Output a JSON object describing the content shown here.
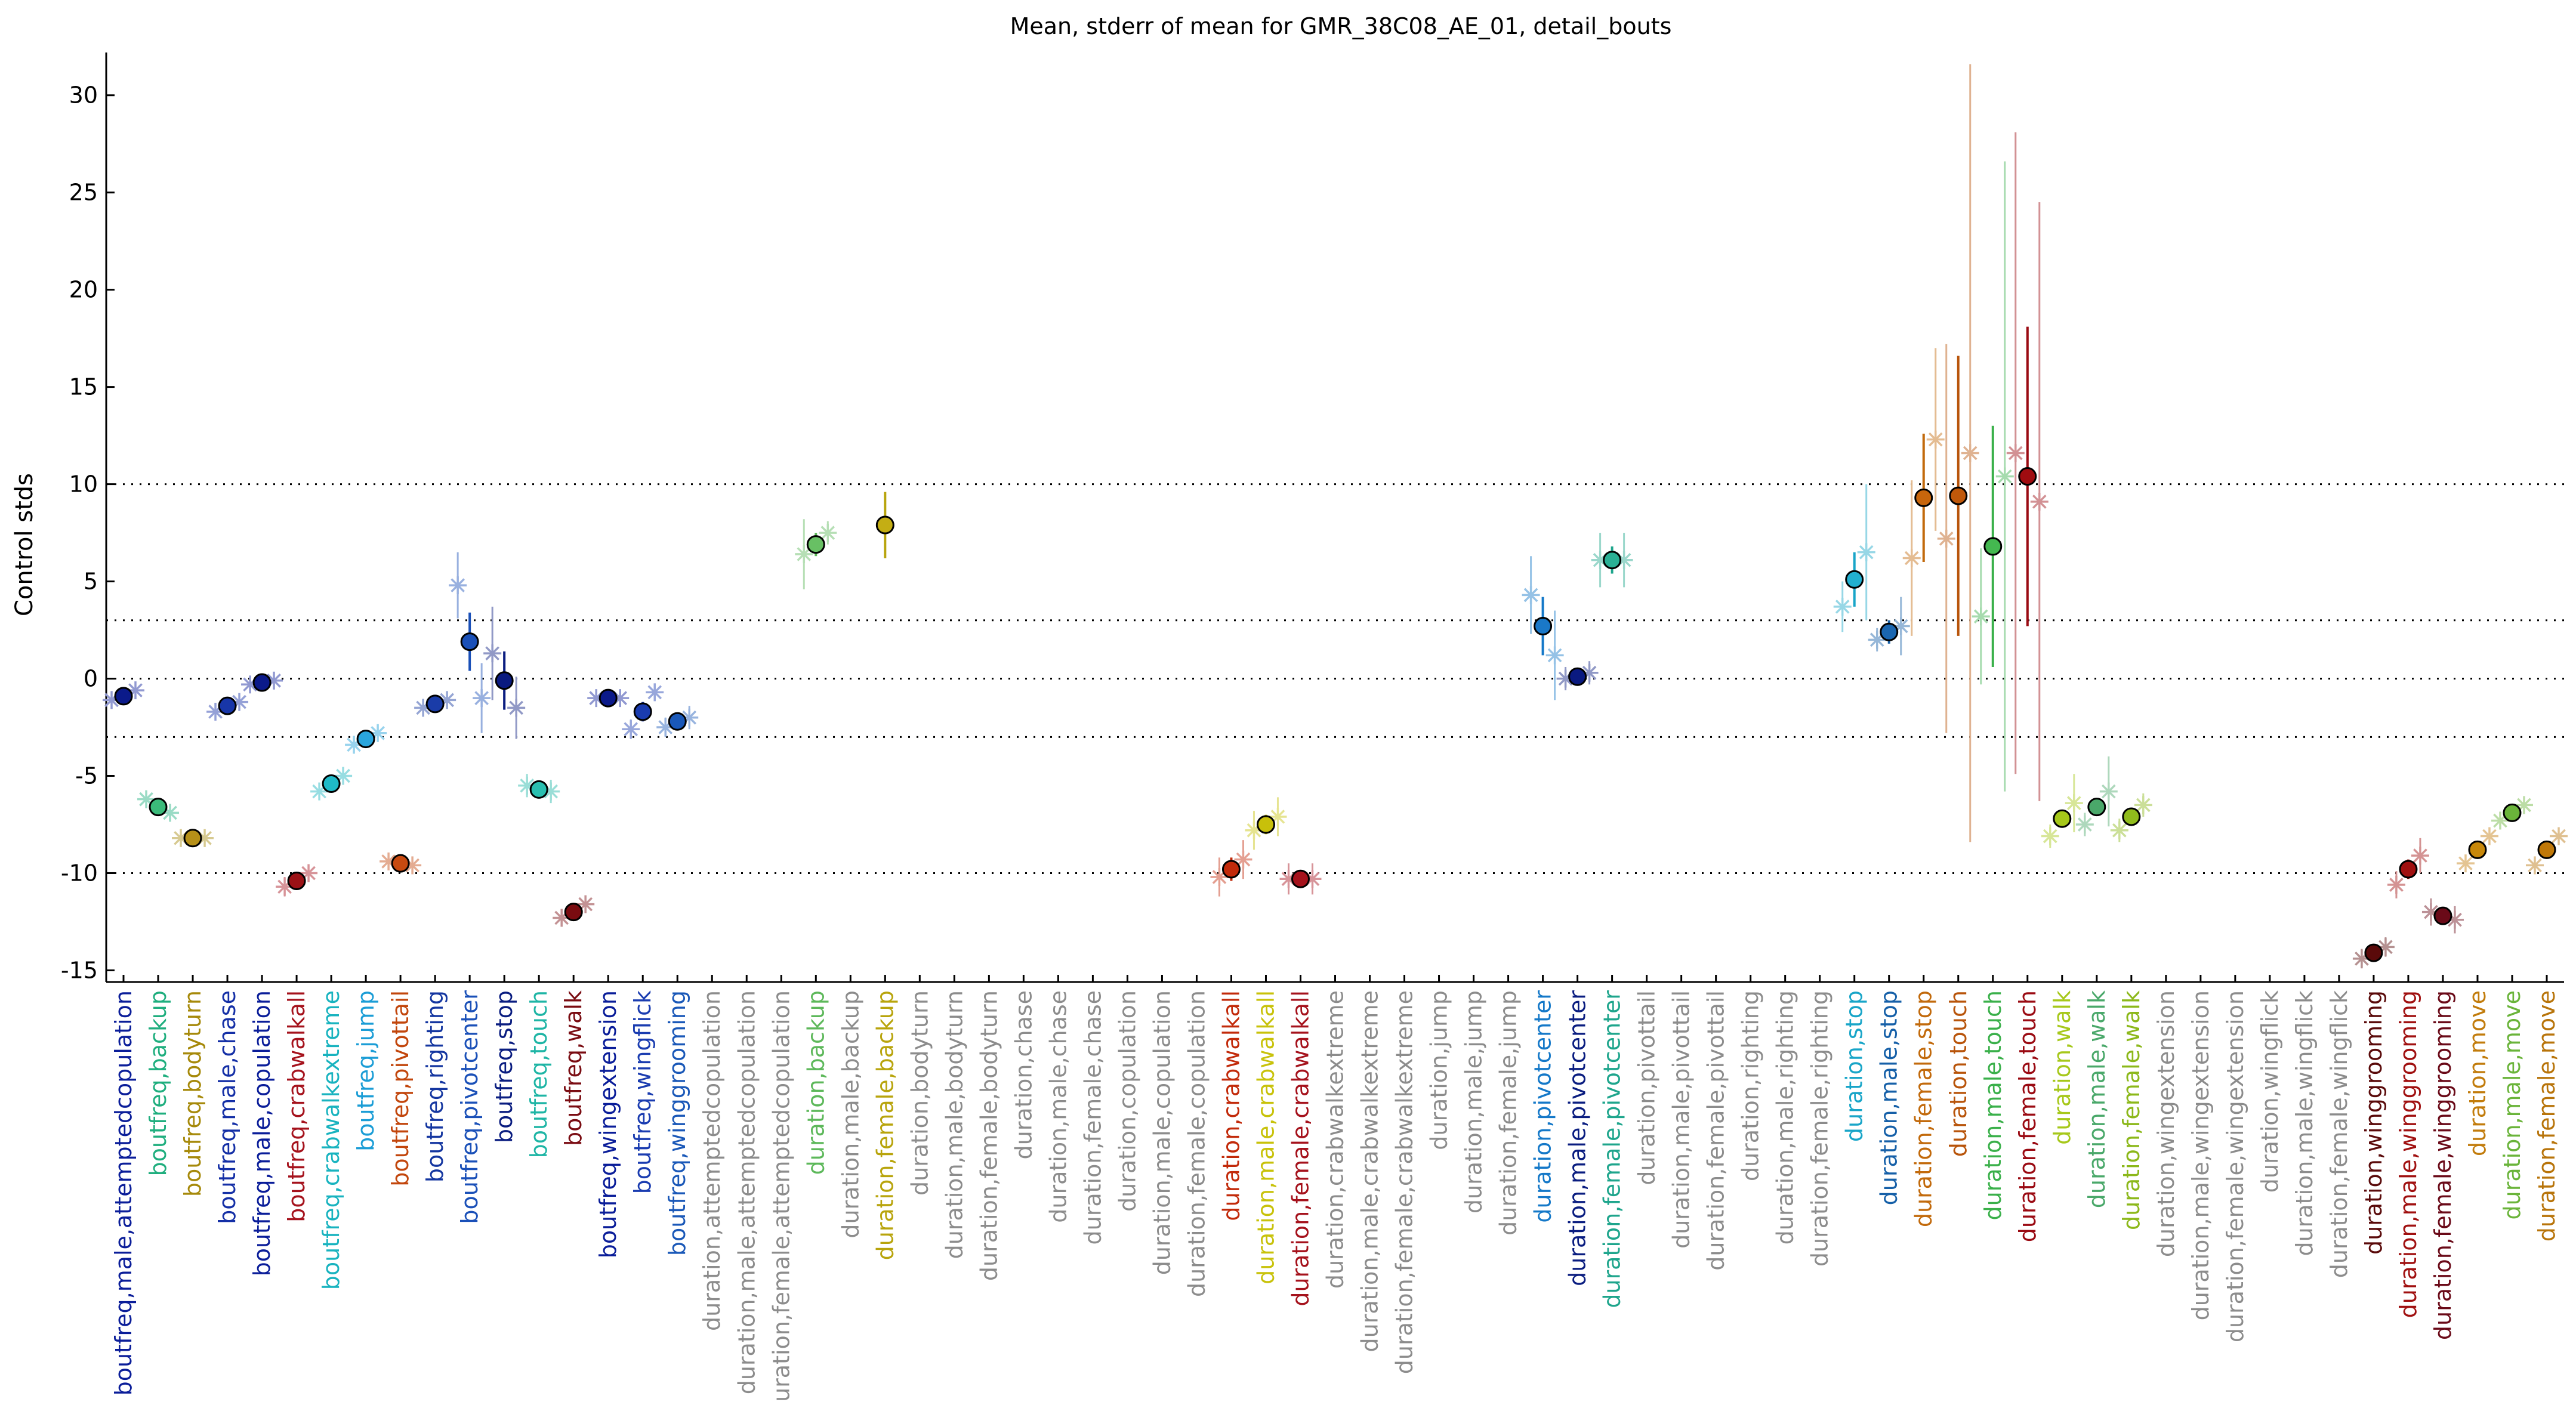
{
  "chart_data": {
    "type": "scatter",
    "title": "Mean, stderr of mean for GMR_38C08_AE_01, detail_bouts",
    "ylabel": "Control stds",
    "xlabel": "",
    "ylim": [
      -15.6,
      32.2
    ],
    "yticks": [
      -15,
      -10,
      -5,
      0,
      5,
      10,
      15,
      20,
      25,
      30
    ],
    "reference_lines": [
      10,
      3,
      0,
      -3,
      -10
    ],
    "grid": false,
    "categories": [
      {
        "label": "boutfreq,male,attemptedcopulation",
        "color": "#0a1d99",
        "mean": -0.9,
        "se": 0.3,
        "fill": "#0b1a8a",
        "sub": [
          -1.1,
          -0.6
        ],
        "subse": [
          0.3,
          0.3
        ]
      },
      {
        "label": "boutfreq,backup",
        "color": "#1fae7e",
        "mean": -6.6,
        "se": 0.3,
        "fill": "#3bba7a",
        "sub": [
          -6.2,
          -6.9
        ],
        "subse": [
          0.3,
          0.3
        ]
      },
      {
        "label": "boutfreq,bodyturn",
        "color": "#a6890a",
        "mean": -8.2,
        "se": 0.2,
        "fill": "#b69018",
        "sub": [
          -8.2,
          -8.2
        ],
        "subse": [
          0.2,
          0.2
        ]
      },
      {
        "label": "boutfreq,male,chase",
        "color": "#142fa6",
        "mean": -1.4,
        "se": 0.3,
        "fill": "#1836a8",
        "sub": [
          -1.7,
          -1.2
        ],
        "subse": [
          0.3,
          0.3
        ]
      },
      {
        "label": "boutfreq,male,copulation",
        "color": "#0a1d99",
        "mean": -0.2,
        "se": 0.2,
        "fill": "#0b1a8a",
        "sub": [
          -0.3,
          -0.1
        ],
        "subse": [
          0.2,
          0.2
        ]
      },
      {
        "label": "boutfreq,crabwalkall",
        "color": "#a5121c",
        "mean": -10.4,
        "se": 0.4,
        "fill": "#9c1216",
        "sub": [
          -10.7,
          -10.0
        ],
        "subse": [
          0.5,
          0.4
        ]
      },
      {
        "label": "boutfreq,crabwalkextreme",
        "color": "#18b3bf",
        "mean": -5.4,
        "se": 0.3,
        "fill": "#1fbac8",
        "sub": [
          -5.8,
          -5.0
        ],
        "subse": [
          0.3,
          0.3
        ]
      },
      {
        "label": "boutfreq,jump",
        "color": "#1b9dd6",
        "mean": -3.1,
        "se": 0.3,
        "fill": "#2aa5dc",
        "sub": [
          -3.4,
          -2.8
        ],
        "subse": [
          0.3,
          0.3
        ]
      },
      {
        "label": "boutfreq,pivottail",
        "color": "#c2460c",
        "mean": -9.5,
        "se": 0.2,
        "fill": "#c84a10",
        "sub": [
          -9.4,
          -9.6
        ],
        "subse": [
          0.2,
          0.2
        ]
      },
      {
        "label": "boutfreq,righting",
        "color": "#1436a0",
        "mean": -1.3,
        "se": 0.2,
        "fill": "#1a3ca8",
        "sub": [
          -1.5,
          -1.1
        ],
        "subse": [
          0.2,
          0.2
        ]
      },
      {
        "label": "boutfreq,pivotcenter",
        "color": "#1a50b8",
        "mean": 1.9,
        "se": 1.5,
        "fill": "#1a50b8",
        "sub": [
          4.8,
          -1.0
        ],
        "subse": [
          1.7,
          1.8
        ]
      },
      {
        "label": "boutfreq,stop",
        "color": "#0a1d80",
        "mean": -0.1,
        "se": 1.5,
        "fill": "#0a1a80",
        "sub": [
          1.3,
          -1.5
        ],
        "subse": [
          2.4,
          1.6
        ]
      },
      {
        "label": "boutfreq,touch",
        "color": "#1eb5a5",
        "mean": -5.7,
        "se": 0.4,
        "fill": "#2abfb0",
        "sub": [
          -5.5,
          -5.8
        ],
        "subse": [
          0.6,
          0.6
        ]
      },
      {
        "label": "boutfreq,walk",
        "color": "#7a0c12",
        "mean": -12.0,
        "se": 0.2,
        "fill": "#7a0c10",
        "sub": [
          -12.3,
          -11.6
        ],
        "subse": [
          0.3,
          0.3
        ]
      },
      {
        "label": "boutfreq,wingextension",
        "color": "#0a1d99",
        "mean": -1.0,
        "se": 0.2,
        "fill": "#0b1a8a",
        "sub": [
          -1.0,
          -1.0
        ],
        "subse": [
          0.2,
          0.2
        ]
      },
      {
        "label": "boutfreq,wingflick",
        "color": "#1a3cb0",
        "mean": -1.7,
        "se": 0.5,
        "fill": "#1a3cb0",
        "sub": [
          -2.6,
          -0.7
        ],
        "subse": [
          0.5,
          0.4
        ]
      },
      {
        "label": "boutfreq,winggrooming",
        "color": "#1a58b8",
        "mean": -2.2,
        "se": 0.3,
        "fill": "#1a58b8",
        "sub": [
          -2.5,
          -2.0
        ],
        "subse": [
          0.5,
          0.6
        ]
      },
      {
        "label": "duration,attemptedcopulation",
        "color": "#8c8c8c"
      },
      {
        "label": "duration,male,attemptedcopulation",
        "color": "#8c8c8c"
      },
      {
        "label": "duration,female,attemptedcopulation",
        "color": "#8c8c8c"
      },
      {
        "label": "duration,backup",
        "color": "#5db85a",
        "mean": 6.9,
        "se": 0.6,
        "fill": "#68c064",
        "sub": [
          6.4,
          7.5
        ],
        "subse": [
          1.8,
          0.6
        ]
      },
      {
        "label": "duration,male,backup",
        "color": "#8c8c8c"
      },
      {
        "label": "duration,female,backup",
        "color": "#b8a40c",
        "mean": 7.9,
        "se": 1.7,
        "fill": "#c4ae14"
      },
      {
        "label": "duration,bodyturn",
        "color": "#8c8c8c"
      },
      {
        "label": "duration,male,bodyturn",
        "color": "#8c8c8c"
      },
      {
        "label": "duration,female,bodyturn",
        "color": "#8c8c8c"
      },
      {
        "label": "duration,chase",
        "color": "#8c8c8c"
      },
      {
        "label": "duration,male,chase",
        "color": "#8c8c8c"
      },
      {
        "label": "duration,female,chase",
        "color": "#8c8c8c"
      },
      {
        "label": "duration,copulation",
        "color": "#8c8c8c"
      },
      {
        "label": "duration,male,copulation",
        "color": "#8c8c8c"
      },
      {
        "label": "duration,female,copulation",
        "color": "#8c8c8c"
      },
      {
        "label": "duration,crabwalkall",
        "color": "#c22a0a",
        "mean": -9.8,
        "se": 0.6,
        "fill": "#c22a0a",
        "sub": [
          -10.2,
          -9.3
        ],
        "subse": [
          1.0,
          1.0
        ]
      },
      {
        "label": "duration,male,crabwalkall",
        "color": "#c8c20a",
        "mean": -7.5,
        "se": 0.5,
        "fill": "#c8c00a",
        "sub": [
          -7.8,
          -7.1
        ],
        "subse": [
          1.0,
          1.0
        ]
      },
      {
        "label": "duration,female,crabwalkall",
        "color": "#a5121c",
        "mean": -10.3,
        "se": 0.4,
        "fill": "#a5121c",
        "sub": [
          -10.3,
          -10.3
        ],
        "subse": [
          0.8,
          0.8
        ]
      },
      {
        "label": "duration,crabwalkextreme",
        "color": "#8c8c8c"
      },
      {
        "label": "duration,male,crabwalkextreme",
        "color": "#8c8c8c"
      },
      {
        "label": "duration,female,crabwalkextreme",
        "color": "#8c8c8c"
      },
      {
        "label": "duration,jump",
        "color": "#8c8c8c"
      },
      {
        "label": "duration,male,jump",
        "color": "#8c8c8c"
      },
      {
        "label": "duration,female,jump",
        "color": "#8c8c8c"
      },
      {
        "label": "duration,pivotcenter",
        "color": "#1478c8",
        "mean": 2.7,
        "se": 1.5,
        "fill": "#1a78c8",
        "sub": [
          4.3,
          1.2
        ],
        "subse": [
          2.0,
          2.3
        ]
      },
      {
        "label": "duration,male,pivotcenter",
        "color": "#0a1d80",
        "mean": 0.1,
        "se": 0.3,
        "fill": "#0a1a80",
        "sub": [
          0.0,
          0.3
        ],
        "subse": [
          0.6,
          0.6
        ]
      },
      {
        "label": "duration,female,pivotcenter",
        "color": "#1ea58c",
        "mean": 6.1,
        "se": 0.7,
        "fill": "#2ab095",
        "sub": [
          6.1,
          6.1
        ],
        "subse": [
          1.4,
          1.4
        ]
      },
      {
        "label": "duration,pivottail",
        "color": "#8c8c8c"
      },
      {
        "label": "duration,male,pivottail",
        "color": "#8c8c8c"
      },
      {
        "label": "duration,female,pivottail",
        "color": "#8c8c8c"
      },
      {
        "label": "duration,righting",
        "color": "#8c8c8c"
      },
      {
        "label": "duration,male,righting",
        "color": "#8c8c8c"
      },
      {
        "label": "duration,female,righting",
        "color": "#8c8c8c"
      },
      {
        "label": "duration,stop",
        "color": "#18a5c8",
        "mean": 5.1,
        "se": 1.4,
        "fill": "#22b0d0",
        "sub": [
          3.7,
          6.5
        ],
        "subse": [
          1.3,
          3.5
        ]
      },
      {
        "label": "duration,male,stop",
        "color": "#1660a8",
        "mean": 2.4,
        "se": 0.6,
        "fill": "#1a66b0",
        "sub": [
          2.0,
          2.7
        ],
        "subse": [
          0.6,
          1.5
        ]
      },
      {
        "label": "duration,female,stop",
        "color": "#c26a0c",
        "mean": 9.3,
        "se": 3.3,
        "fill": "#c8660c",
        "sub": [
          6.2,
          12.3
        ],
        "subse": [
          4.0,
          4.7
        ]
      },
      {
        "label": "duration,touch",
        "color": "#b8540a",
        "mean": 9.4,
        "se": 7.2,
        "fill": "#c0580a",
        "sub": [
          7.2,
          11.6
        ],
        "subse": [
          10.0,
          20.0
        ]
      },
      {
        "label": "duration,male,touch",
        "color": "#3ab04a",
        "mean": 6.8,
        "se": 6.2,
        "fill": "#44b850",
        "sub": [
          3.2,
          10.4
        ],
        "subse": [
          3.5,
          16.2
        ]
      },
      {
        "label": "duration,female,touch",
        "color": "#9a0a12",
        "mean": 10.4,
        "se": 7.7,
        "fill": "#a00c10",
        "sub": [
          11.6,
          9.1
        ],
        "subse": [
          16.5,
          15.4
        ]
      },
      {
        "label": "duration,walk",
        "color": "#a6c81a",
        "mean": -7.2,
        "se": 0.4,
        "fill": "#a6c81a",
        "sub": [
          -8.1,
          -6.4
        ],
        "subse": [
          0.6,
          1.5
        ]
      },
      {
        "label": "duration,male,walk",
        "color": "#4aa86a",
        "mean": -6.6,
        "se": 0.4,
        "fill": "#4aa86a",
        "sub": [
          -7.5,
          -5.8
        ],
        "subse": [
          0.6,
          1.8
        ]
      },
      {
        "label": "duration,female,walk",
        "color": "#8cb81a",
        "mean": -7.1,
        "se": 0.4,
        "fill": "#90bc1c",
        "sub": [
          -7.8,
          -6.5
        ],
        "subse": [
          0.6,
          0.6
        ]
      },
      {
        "label": "duration,wingextension",
        "color": "#8c8c8c"
      },
      {
        "label": "duration,male,wingextension",
        "color": "#8c8c8c"
      },
      {
        "label": "duration,female,wingextension",
        "color": "#8c8c8c"
      },
      {
        "label": "duration,wingflick",
        "color": "#8c8c8c"
      },
      {
        "label": "duration,male,wingflick",
        "color": "#8c8c8c"
      },
      {
        "label": "duration,female,wingflick",
        "color": "#8c8c8c"
      },
      {
        "label": "duration,winggrooming",
        "color": "#5a0a0a",
        "mean": -14.1,
        "se": 0.3,
        "fill": "#5a0a0a",
        "sub": [
          -14.4,
          -13.8
        ],
        "subse": [
          0.5,
          0.5
        ]
      },
      {
        "label": "duration,male,winggrooming",
        "color": "#a01010",
        "mean": -9.8,
        "se": 0.5,
        "fill": "#a01010",
        "sub": [
          -10.6,
          -9.1
        ],
        "subse": [
          0.7,
          0.9
        ]
      },
      {
        "label": "duration,female,winggrooming",
        "color": "#6a0a18",
        "mean": -12.2,
        "se": 0.3,
        "fill": "#6a0a18",
        "sub": [
          -12.0,
          -12.4
        ],
        "subse": [
          0.7,
          0.7
        ]
      },
      {
        "label": "duration,move",
        "color": "#c27c0c",
        "mean": -8.8,
        "se": 0.3,
        "fill": "#c8880a",
        "sub": [
          -9.5,
          -8.1
        ],
        "subse": [
          0.3,
          0.3
        ]
      },
      {
        "label": "duration,male,move",
        "color": "#6ab43a",
        "mean": -6.9,
        "se": 0.3,
        "fill": "#6ab43a",
        "sub": [
          -7.3,
          -6.5
        ],
        "subse": [
          0.3,
          0.3
        ]
      },
      {
        "label": "duration,female,move",
        "color": "#b8740a",
        "mean": -8.8,
        "se": 0.3,
        "fill": "#c07808",
        "sub": [
          -9.6,
          -8.1
        ],
        "subse": [
          0.3,
          0.3
        ]
      }
    ]
  }
}
